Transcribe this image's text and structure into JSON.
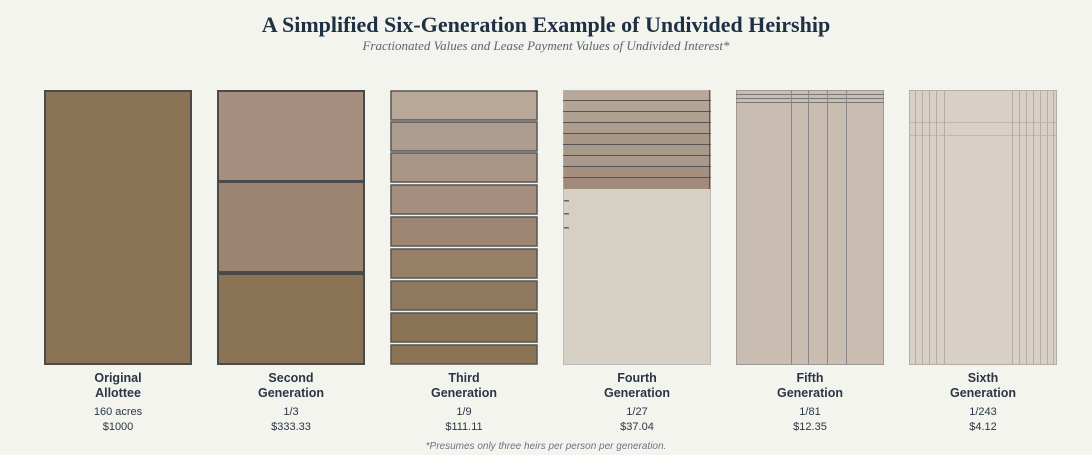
{
  "title": "A Simplified Six-Generation Example of Undivided Heirship",
  "subtitle": "Fractionated Values and Lease Payment Values of Undivided Interest*",
  "footnote": "*Presumes only three heirs per person per generation.",
  "colors": {
    "background": "#f4f4ef",
    "title": "#1f3044",
    "allottee_brown": "#8a7455",
    "parcel_mauve": "#a68f7f",
    "parcel_light": "#d6cfc3",
    "border": "#4a4a4a"
  },
  "generations": [
    {
      "label_line1": "Original",
      "label_line2": "Allottee",
      "fraction": "160 acres",
      "value": "$1000"
    },
    {
      "label_line1": "Second",
      "label_line2": "Generation",
      "fraction": "1/3",
      "value": "$333.33"
    },
    {
      "label_line1": "Third",
      "label_line2": "Generation",
      "fraction": "1/9",
      "value": "$111.11"
    },
    {
      "label_line1": "Fourth",
      "label_line2": "Generation",
      "fraction": "1/27",
      "value": "$37.04"
    },
    {
      "label_line1": "Fifth",
      "label_line2": "Generation",
      "fraction": "1/81",
      "value": "$12.35"
    },
    {
      "label_line1": "Sixth",
      "label_line2": "Generation",
      "fraction": "1/243",
      "value": "$4.12"
    }
  ]
}
